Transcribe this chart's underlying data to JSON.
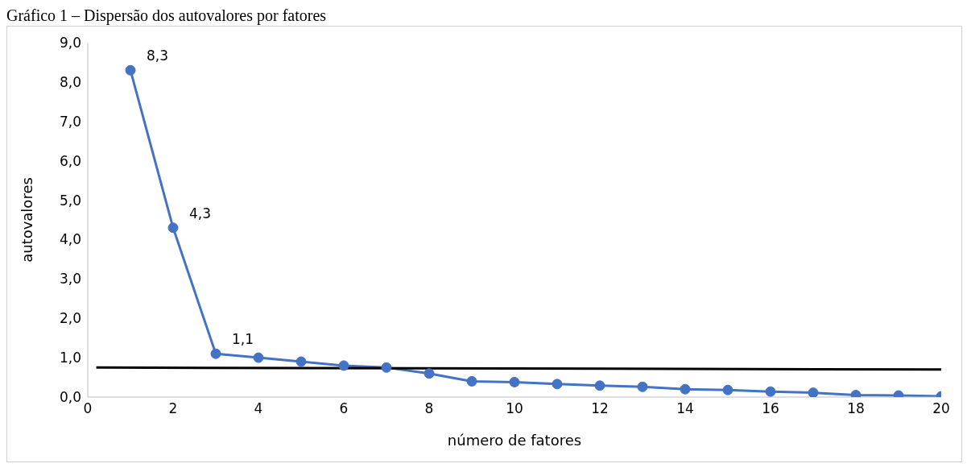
{
  "chart_data": {
    "type": "line",
    "title": "Gráfico 1 – Dispersão dos autovalores por fatores",
    "xlabel": "número de fatores",
    "ylabel": "autovalores",
    "x": [
      1,
      2,
      3,
      4,
      5,
      6,
      7,
      8,
      9,
      10,
      11,
      12,
      13,
      14,
      15,
      16,
      17,
      18,
      19,
      20
    ],
    "series": [
      {
        "color": "#4472c4",
        "values": [
          8.3,
          4.3,
          1.1,
          1.0,
          0.9,
          0.8,
          0.75,
          0.6,
          0.4,
          0.38,
          0.33,
          0.29,
          0.26,
          0.2,
          0.18,
          0.14,
          0.11,
          0.05,
          0.04,
          0.02
        ],
        "value_labels": [
          "8,3",
          "4,3",
          "1,1",
          null,
          null,
          null,
          null,
          null,
          null,
          null,
          null,
          null,
          null,
          null,
          null,
          null,
          null,
          null,
          null,
          null
        ],
        "marker": "circle"
      },
      {
        "type": "line",
        "color": "#000000",
        "x": [
          0.2,
          20
        ],
        "values": [
          0.75,
          0.7
        ],
        "marker": "none"
      }
    ],
    "xlim": [
      0,
      20
    ],
    "xticks": [
      0,
      2,
      4,
      6,
      8,
      10,
      12,
      14,
      16,
      18,
      20
    ],
    "ylim": [
      0,
      9
    ],
    "yticks": [
      {
        "value": 0,
        "label": "0,0"
      },
      {
        "value": 1,
        "label": "1,0"
      },
      {
        "value": 2,
        "label": "2,0"
      },
      {
        "value": 3,
        "label": "3,0"
      },
      {
        "value": 4,
        "label": "4,0"
      },
      {
        "value": 5,
        "label": "5,0"
      },
      {
        "value": 6,
        "label": "6,0"
      },
      {
        "value": 7,
        "label": "7,0"
      },
      {
        "value": 8,
        "label": "8,0"
      },
      {
        "value": 9,
        "label": "9,0"
      }
    ],
    "grid": false,
    "line_style": "solid"
  }
}
